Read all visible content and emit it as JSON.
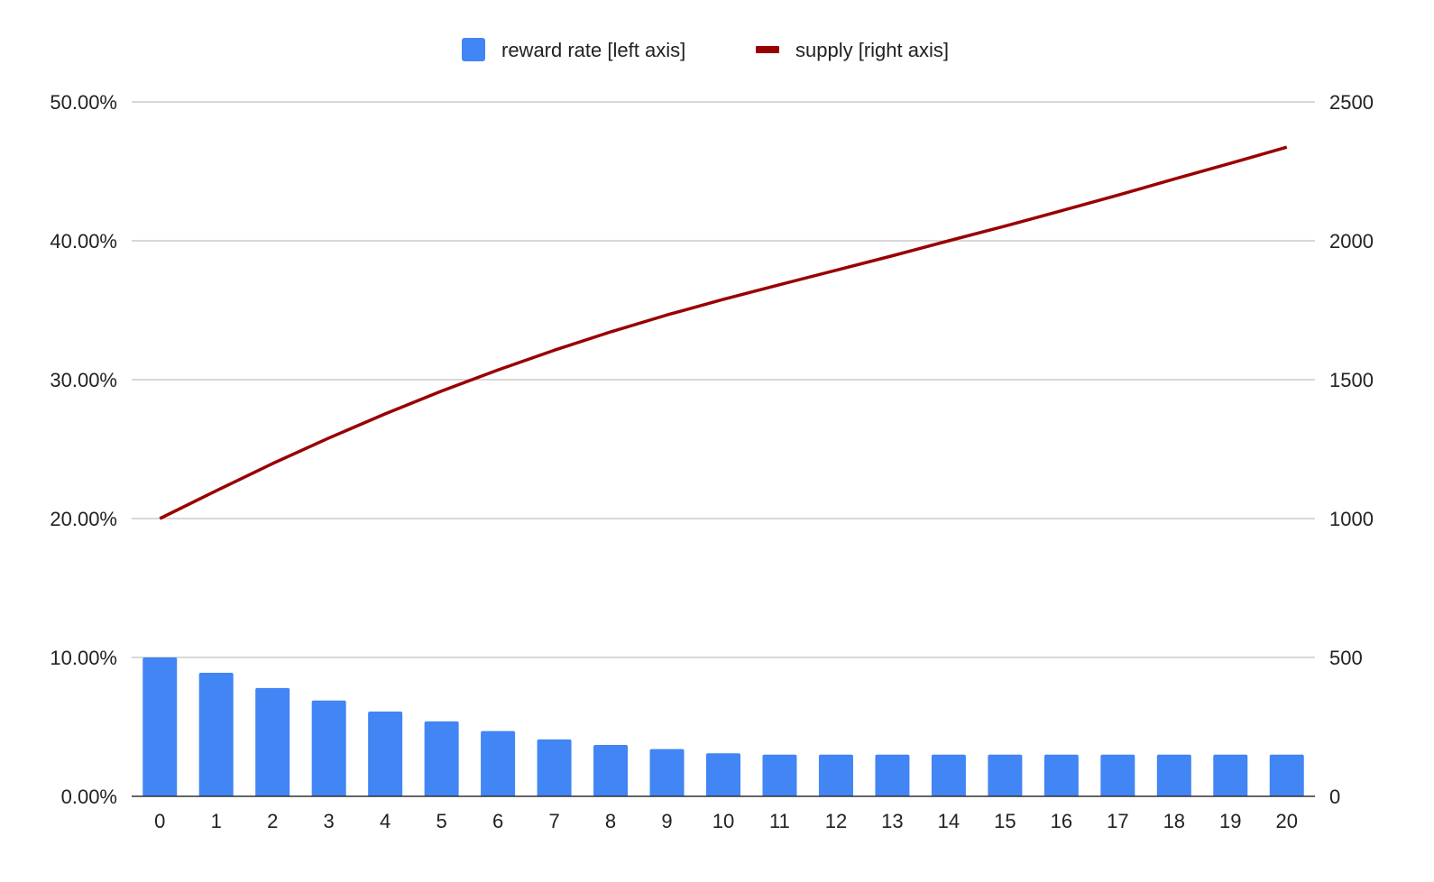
{
  "chart_data": {
    "type": "bar",
    "combo": true,
    "categories": [
      "0",
      "1",
      "2",
      "3",
      "4",
      "5",
      "6",
      "7",
      "8",
      "9",
      "10",
      "11",
      "12",
      "13",
      "14",
      "15",
      "16",
      "17",
      "18",
      "19",
      "20"
    ],
    "series": [
      {
        "name": "reward rate [left axis]",
        "type": "bar",
        "axis": "left",
        "color": "#4285f4",
        "values": [
          0.1,
          0.089,
          0.078,
          0.069,
          0.061,
          0.054,
          0.047,
          0.041,
          0.037,
          0.034,
          0.031,
          0.03,
          0.03,
          0.03,
          0.03,
          0.03,
          0.03,
          0.03,
          0.03,
          0.03,
          0.03
        ]
      },
      {
        "name": "supply [right axis]",
        "type": "line",
        "axis": "right",
        "color": "#990000",
        "values": [
          1000,
          1100,
          1198,
          1290,
          1377,
          1459,
          1535,
          1606,
          1672,
          1733,
          1789,
          1842,
          1894,
          1946,
          2000,
          2053,
          2108,
          2164,
          2222,
          2279,
          2337
        ]
      }
    ],
    "left_axis": {
      "ylim": [
        0,
        0.5
      ],
      "ticks": [
        0,
        0.1,
        0.2,
        0.3,
        0.4,
        0.5
      ],
      "tick_labels": [
        "0.00%",
        "10.00%",
        "20.00%",
        "30.00%",
        "40.00%",
        "50.00%"
      ]
    },
    "right_axis": {
      "ylim": [
        0,
        2500
      ],
      "ticks": [
        0,
        500,
        1000,
        1500,
        2000,
        2500
      ],
      "tick_labels": [
        "0",
        "500",
        "1000",
        "1500",
        "2000",
        "2500"
      ]
    },
    "grid": true,
    "legend_position": "top-center",
    "title": "",
    "xlabel": "",
    "ylabel": ""
  }
}
